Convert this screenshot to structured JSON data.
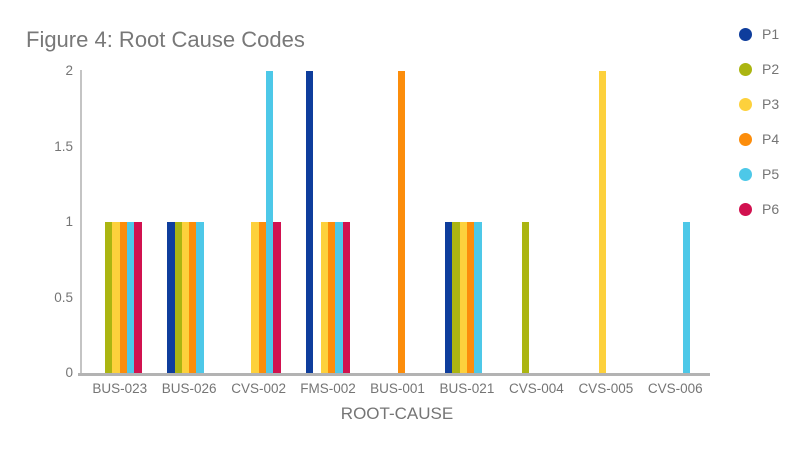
{
  "chart_data": {
    "type": "bar",
    "title": "Figure 4: Root Cause Codes",
    "xlabel": "ROOT-CAUSE",
    "ylabel": "",
    "categories": [
      "BUS-023",
      "BUS-026",
      "CVS-002",
      "FMS-002",
      "BUS-001",
      "BUS-021",
      "CVS-004",
      "CVS-005",
      "CVS-006"
    ],
    "series": [
      {
        "name": "P1",
        "color": "#0e3d9c",
        "values": [
          0,
          1,
          0,
          2,
          0,
          1,
          0,
          0,
          0
        ]
      },
      {
        "name": "P2",
        "color": "#abb511",
        "values": [
          1,
          1,
          0,
          0,
          0,
          1,
          1,
          0,
          0
        ]
      },
      {
        "name": "P3",
        "color": "#fdd13c",
        "values": [
          1,
          1,
          1,
          1,
          0,
          1,
          0,
          2,
          0
        ]
      },
      {
        "name": "P4",
        "color": "#fc8d0b",
        "values": [
          1,
          1,
          1,
          1,
          2,
          1,
          0,
          0,
          0
        ]
      },
      {
        "name": "P5",
        "color": "#4dc8e8",
        "values": [
          1,
          1,
          2,
          1,
          0,
          1,
          0,
          0,
          1
        ]
      },
      {
        "name": "P6",
        "color": "#d1114f",
        "values": [
          1,
          0,
          1,
          1,
          0,
          0,
          0,
          0,
          0
        ]
      }
    ],
    "yticks": [
      0,
      0.5,
      1,
      1.5,
      2
    ],
    "ylim": [
      0,
      2
    ],
    "grid": false,
    "legend_position": "right",
    "text_color": "#757575",
    "axis_line_color": "#b3b3b3"
  }
}
